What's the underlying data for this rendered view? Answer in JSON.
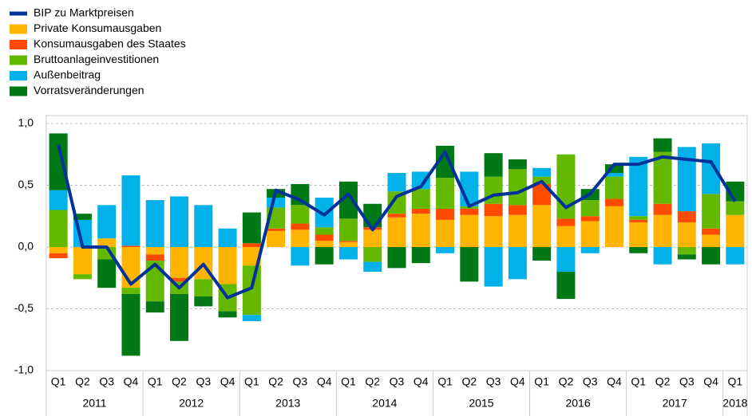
{
  "chart_data": {
    "type": "bar",
    "stacked": true,
    "categories": [
      "Q1",
      "Q2",
      "Q3",
      "Q4",
      "Q1",
      "Q2",
      "Q3",
      "Q4",
      "Q1",
      "Q2",
      "Q3",
      "Q4",
      "Q1",
      "Q2",
      "Q3",
      "Q4",
      "Q1",
      "Q2",
      "Q3",
      "Q4",
      "Q1",
      "Q2",
      "Q3",
      "Q4",
      "Q1",
      "Q2",
      "Q3",
      "Q4",
      "Q1"
    ],
    "years": [
      "2011",
      null,
      null,
      null,
      "2012",
      null,
      null,
      null,
      "2013",
      null,
      null,
      null,
      "2014",
      null,
      null,
      null,
      "2015",
      null,
      null,
      null,
      "2016",
      null,
      null,
      null,
      "2017",
      null,
      null,
      null,
      "2018"
    ],
    "series": [
      {
        "name": "BIP zu Marktpreisen",
        "type": "line",
        "color": "#003299",
        "values": [
          0.83,
          0.0,
          0.0,
          -0.3,
          -0.14,
          -0.33,
          -0.14,
          -0.41,
          -0.33,
          0.46,
          0.38,
          0.26,
          0.43,
          0.14,
          0.41,
          0.49,
          0.77,
          0.33,
          0.42,
          0.44,
          0.53,
          0.32,
          0.43,
          0.67,
          0.67,
          0.73,
          0.71,
          0.69,
          0.37
        ]
      },
      {
        "name": "Private Konsumausgaben",
        "type": "bar",
        "color": "#ffb400",
        "values": [
          -0.05,
          -0.22,
          0.07,
          -0.33,
          -0.06,
          -0.25,
          -0.26,
          -0.3,
          -0.15,
          0.13,
          0.14,
          0.05,
          0.04,
          0.14,
          0.24,
          0.27,
          0.22,
          0.26,
          0.25,
          0.26,
          0.34,
          0.17,
          0.21,
          0.33,
          0.2,
          0.26,
          0.2,
          0.1,
          0.26
        ]
      },
      {
        "name": "Konsumausgaben des Staates",
        "type": "bar",
        "color": "#ff4b00",
        "values": [
          -0.04,
          0.0,
          0.0,
          0.01,
          -0.05,
          -0.03,
          0.0,
          0.0,
          0.03,
          0.02,
          0.05,
          0.05,
          0.01,
          0.02,
          0.03,
          0.04,
          0.09,
          0.05,
          0.1,
          0.08,
          0.17,
          0.06,
          0.04,
          0.06,
          0.02,
          0.09,
          0.09,
          0.05,
          0.0
        ]
      },
      {
        "name": "Bruttoanlageinvestitionen",
        "type": "bar",
        "color": "#65b800",
        "values": [
          0.3,
          -0.04,
          -0.1,
          -0.05,
          -0.33,
          -0.1,
          -0.14,
          -0.22,
          -0.4,
          0.17,
          0.15,
          0.06,
          0.18,
          -0.12,
          0.18,
          0.16,
          0.25,
          0.02,
          0.22,
          0.29,
          0.06,
          0.52,
          0.13,
          0.18,
          0.03,
          0.42,
          -0.06,
          0.28,
          0.11
        ]
      },
      {
        "name": "Außenbeitrag",
        "type": "bar",
        "color": "#00b1ea",
        "values": [
          0.16,
          0.22,
          0.27,
          0.57,
          0.38,
          0.41,
          0.34,
          0.15,
          -0.05,
          0.08,
          -0.15,
          0.24,
          -0.1,
          -0.08,
          0.15,
          0.14,
          -0.05,
          0.28,
          -0.32,
          -0.26,
          0.07,
          -0.2,
          -0.05,
          0.03,
          0.48,
          -0.14,
          0.52,
          0.41,
          -0.14
        ]
      },
      {
        "name": "Vorratsveränderungen",
        "type": "bar",
        "color": "#007816",
        "values": [
          0.46,
          0.05,
          -0.23,
          -0.5,
          -0.09,
          -0.38,
          -0.08,
          -0.05,
          0.25,
          0.07,
          0.17,
          -0.14,
          0.3,
          0.19,
          -0.17,
          -0.13,
          0.26,
          -0.28,
          0.19,
          0.08,
          -0.11,
          -0.22,
          0.09,
          0.07,
          -0.05,
          0.11,
          -0.04,
          -0.14,
          0.16
        ]
      }
    ],
    "ylim": [
      -1.0,
      1.0
    ],
    "yticks": [
      {
        "value": -1.0,
        "label": "-1,0"
      },
      {
        "value": -0.5,
        "label": "-0,5"
      },
      {
        "value": 0.0,
        "label": "0,0"
      },
      {
        "value": 0.5,
        "label": "0,5"
      },
      {
        "value": 1.0,
        "label": "1,0"
      }
    ],
    "grid": true,
    "legend": "top-left"
  }
}
